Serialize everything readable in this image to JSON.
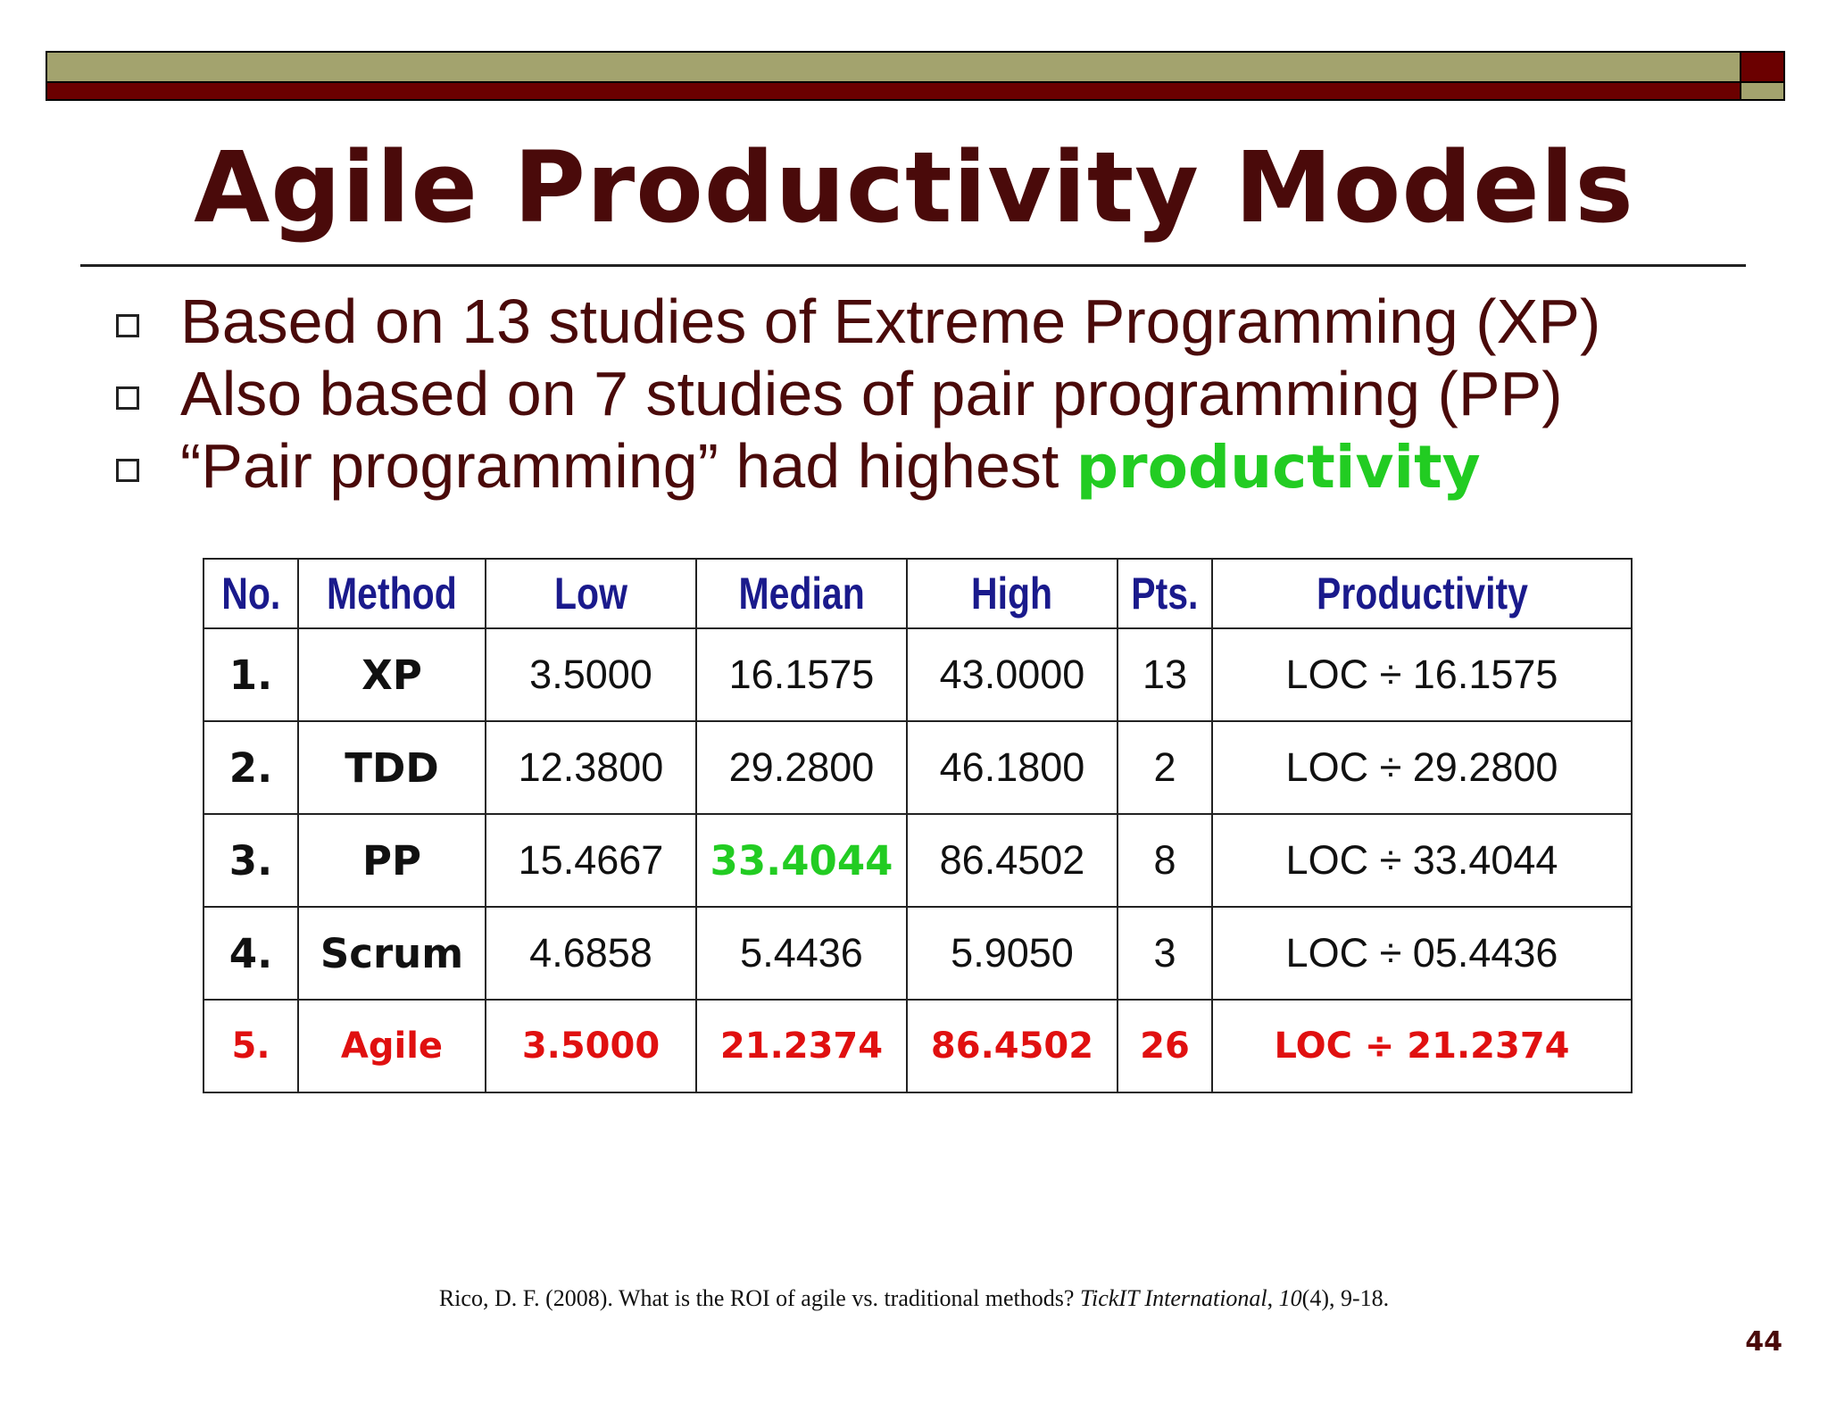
{
  "colors": {
    "olive": "#a3a36e",
    "maroon": "#6b0000",
    "title": "#4a0a0a",
    "header": "#1a1a8c",
    "highlight": "#22cc22",
    "agile": "#e01010"
  },
  "title": "Agile Productivity Models",
  "bullets": [
    {
      "text": "Based on 13 studies of Extreme Programming (XP)",
      "highlight": ""
    },
    {
      "text": "Also based on 7 studies of pair programming (PP)",
      "highlight": ""
    },
    {
      "text": "“Pair programming” had highest ",
      "highlight": "productivity"
    }
  ],
  "table": {
    "headers": [
      "No.",
      "Method",
      "Low",
      "Median",
      "High",
      "Pts.",
      "Productivity"
    ],
    "rows": [
      [
        "1.",
        "XP",
        "3.5000",
        "16.1575",
        "43.0000",
        "13",
        "LOC ÷ 16.1575"
      ],
      [
        "2.",
        "TDD",
        "12.3800",
        "29.2800",
        "46.1800",
        "2",
        "LOC ÷ 29.2800"
      ],
      [
        "3.",
        "PP",
        "15.4667",
        "33.4044",
        "86.4502",
        "8",
        "LOC ÷ 33.4044"
      ],
      [
        "4.",
        "Scrum",
        "4.6858",
        "5.4436",
        "5.9050",
        "3",
        "LOC ÷ 05.4436"
      ],
      [
        "5.",
        "Agile",
        "3.5000",
        "21.2374",
        "86.4502",
        "26",
        "LOC ÷ 21.2374"
      ]
    ]
  },
  "citation": {
    "prefix": "Rico, D. F. (2008). What is the ROI of agile vs. traditional methods? ",
    "journal": "TickIT International",
    "sep": ", ",
    "volume": "10",
    "suffix": "(4), 9-18."
  },
  "page_number": "44"
}
